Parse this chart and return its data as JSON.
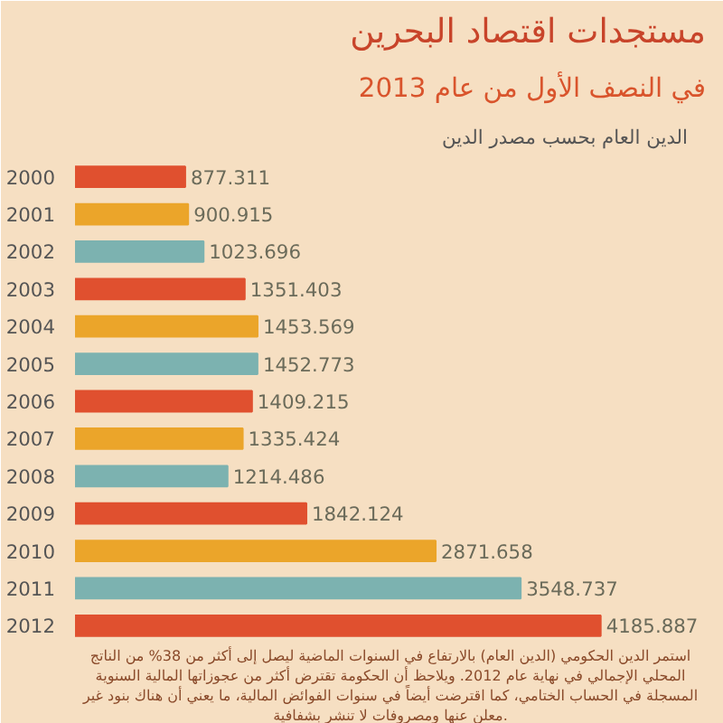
{
  "chart_data": {
    "type": "bar",
    "orientation": "horizontal",
    "title": "مستجدات اقتصاد البحرين",
    "subtitle": "في النصف الأول من عام 2013",
    "categories": [
      "2000",
      "2001",
      "2002",
      "2003",
      "2004",
      "2005",
      "2006",
      "2007",
      "2008",
      "2009",
      "2010",
      "2011",
      "2012"
    ],
    "values": [
      877.311,
      900.915,
      1023.696,
      1351.403,
      1453.569,
      1452.773,
      1409.215,
      1335.424,
      1214.486,
      1842.124,
      2871.658,
      3548.737,
      4185.887
    ],
    "colors": [
      "#e0502f",
      "#eba52a",
      "#7cb2b0",
      "#e0502f",
      "#eba52a",
      "#7cb2b0",
      "#e0502f",
      "#eba52a",
      "#7cb2b0",
      "#e0502f",
      "#eba52a",
      "#7cb2b0",
      "#e0502f"
    ],
    "data_labels": true,
    "grid": false,
    "annotations": [
      "الدين العام بحسب مصدر الدين",
      "استمر الدين الحكومي (الدين العام) بالارتفاع في السنوات الماضية ليصل إلى أكثر من 38% من الناتج\nالمحلي الإجمالي في نهاية عام 2012. ويلاحظ أن الحكومة تقترض أكثر من عجوزاتها المالية السنوية\nالمسجلة في الحساب الختامي، كما اقترضت أيضاً في سنوات الفوائض المالية، ما يعني أن هناك بنود غير\nمعلن عنها ومصروفات لا تنشر بشفافية."
    ]
  }
}
